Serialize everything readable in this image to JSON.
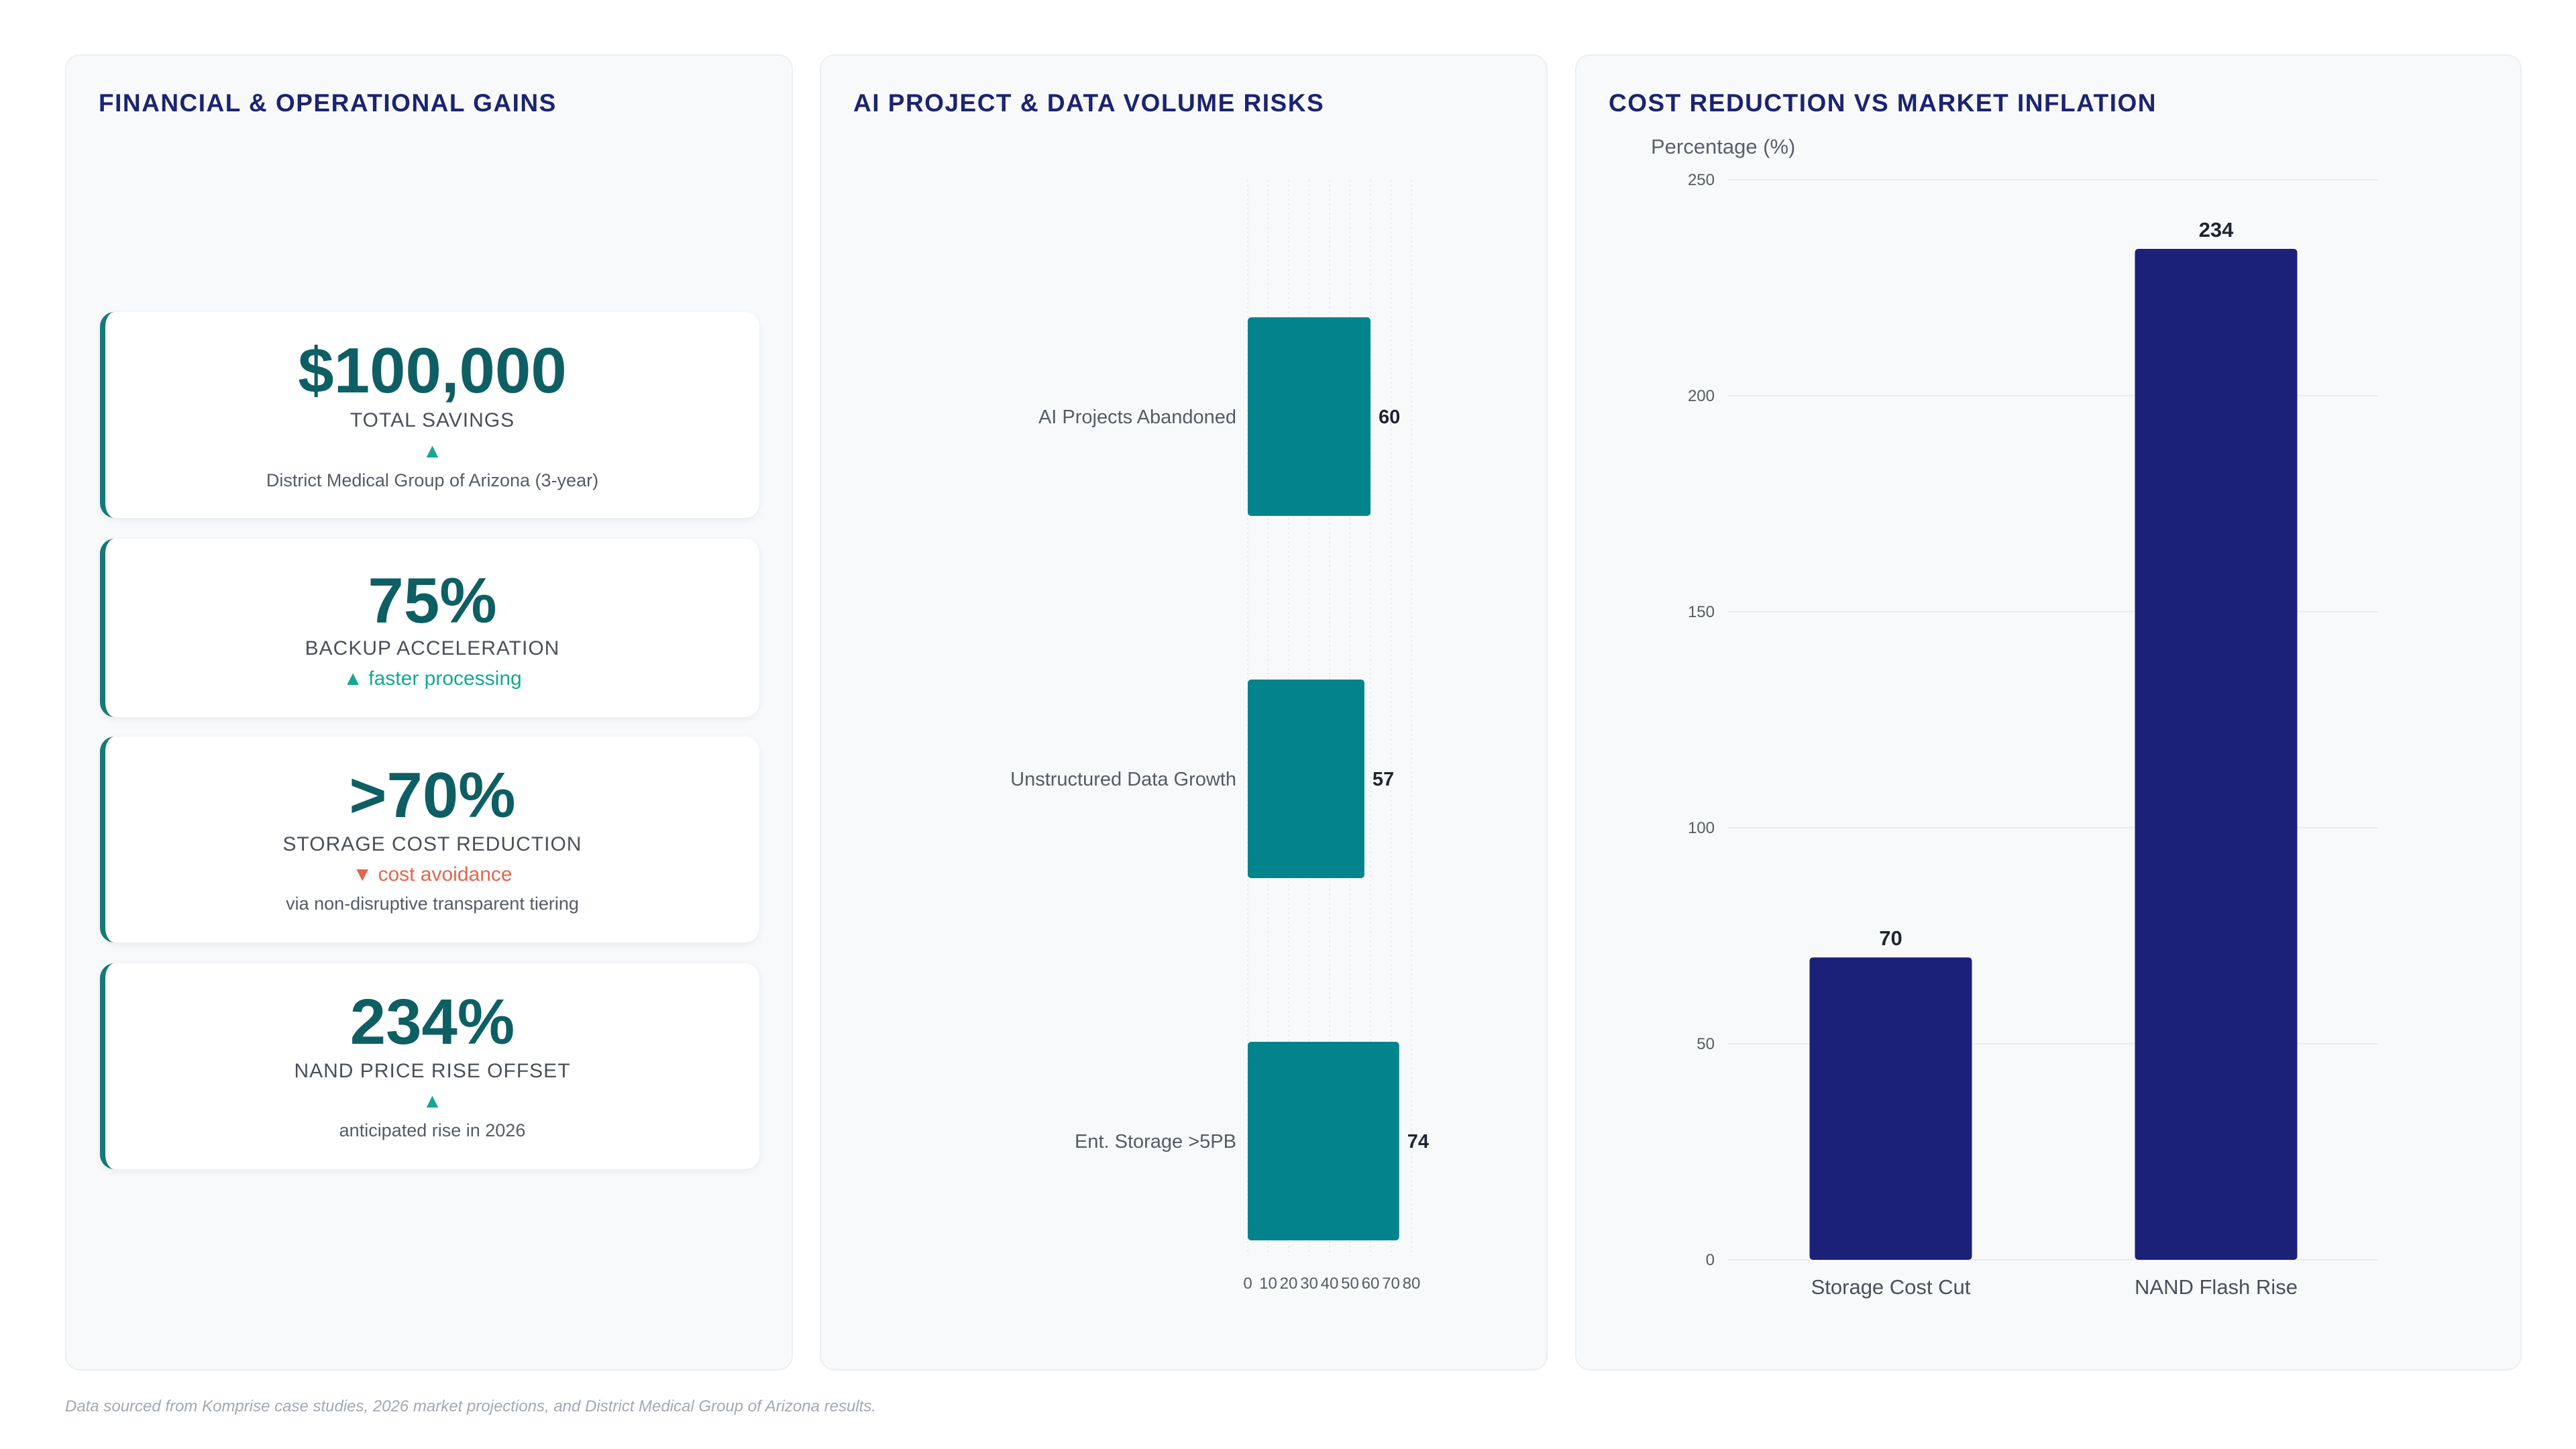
{
  "panels": {
    "gains": {
      "title": "FINANCIAL & OPERATIONAL GAINS"
    },
    "risks": {
      "title": "AI PROJECT & DATA VOLUME RISKS"
    },
    "cost": {
      "title": "COST REDUCTION VS MARKET INFLATION"
    }
  },
  "kpis": [
    {
      "value": "$100,000",
      "label": "TOTAL SAVINGS",
      "trend": "▲",
      "trend_dir": "up",
      "note": "District Medical Group of Arizona (3-year)"
    },
    {
      "value": "75%",
      "label": "BACKUP ACCELERATION",
      "trend": "▲ faster processing",
      "trend_dir": "up",
      "note": ""
    },
    {
      "value": ">70%",
      "label": "STORAGE COST REDUCTION",
      "trend": "▼ cost avoidance",
      "trend_dir": "down",
      "note": "via non-disruptive transparent tiering"
    },
    {
      "value": "234%",
      "label": "NAND PRICE RISE OFFSET",
      "trend": "▲",
      "trend_dir": "up",
      "note": "anticipated rise in 2026"
    }
  ],
  "chart_data": [
    {
      "type": "bar",
      "orientation": "horizontal",
      "title": "AI PROJECT & DATA VOLUME RISKS",
      "categories": [
        "AI Projects Abandoned",
        "Unstructured Data Growth",
        "Ent. Storage >5PB"
      ],
      "values": [
        60,
        57,
        74
      ],
      "xlim": [
        0,
        80
      ],
      "x_ticks": [
        0,
        10,
        20,
        30,
        40,
        50,
        60,
        70,
        80
      ],
      "grid": "vertical",
      "legend": "none",
      "color": "#03848c"
    },
    {
      "type": "bar",
      "orientation": "vertical",
      "title": "COST REDUCTION VS MARKET INFLATION",
      "ylabel": "Percentage (%)",
      "categories": [
        "Storage Cost Cut",
        "NAND Flash Rise"
      ],
      "values": [
        70,
        234
      ],
      "ylim": [
        0,
        250
      ],
      "y_ticks": [
        0,
        50,
        100,
        150,
        200,
        250
      ],
      "grid": "horizontal",
      "legend": "none",
      "color": "#1b2179"
    }
  ],
  "footer": {
    "note": "Data sourced from Komprise case studies, 2026 market projections, and District Medical Group of Arizona results."
  }
}
